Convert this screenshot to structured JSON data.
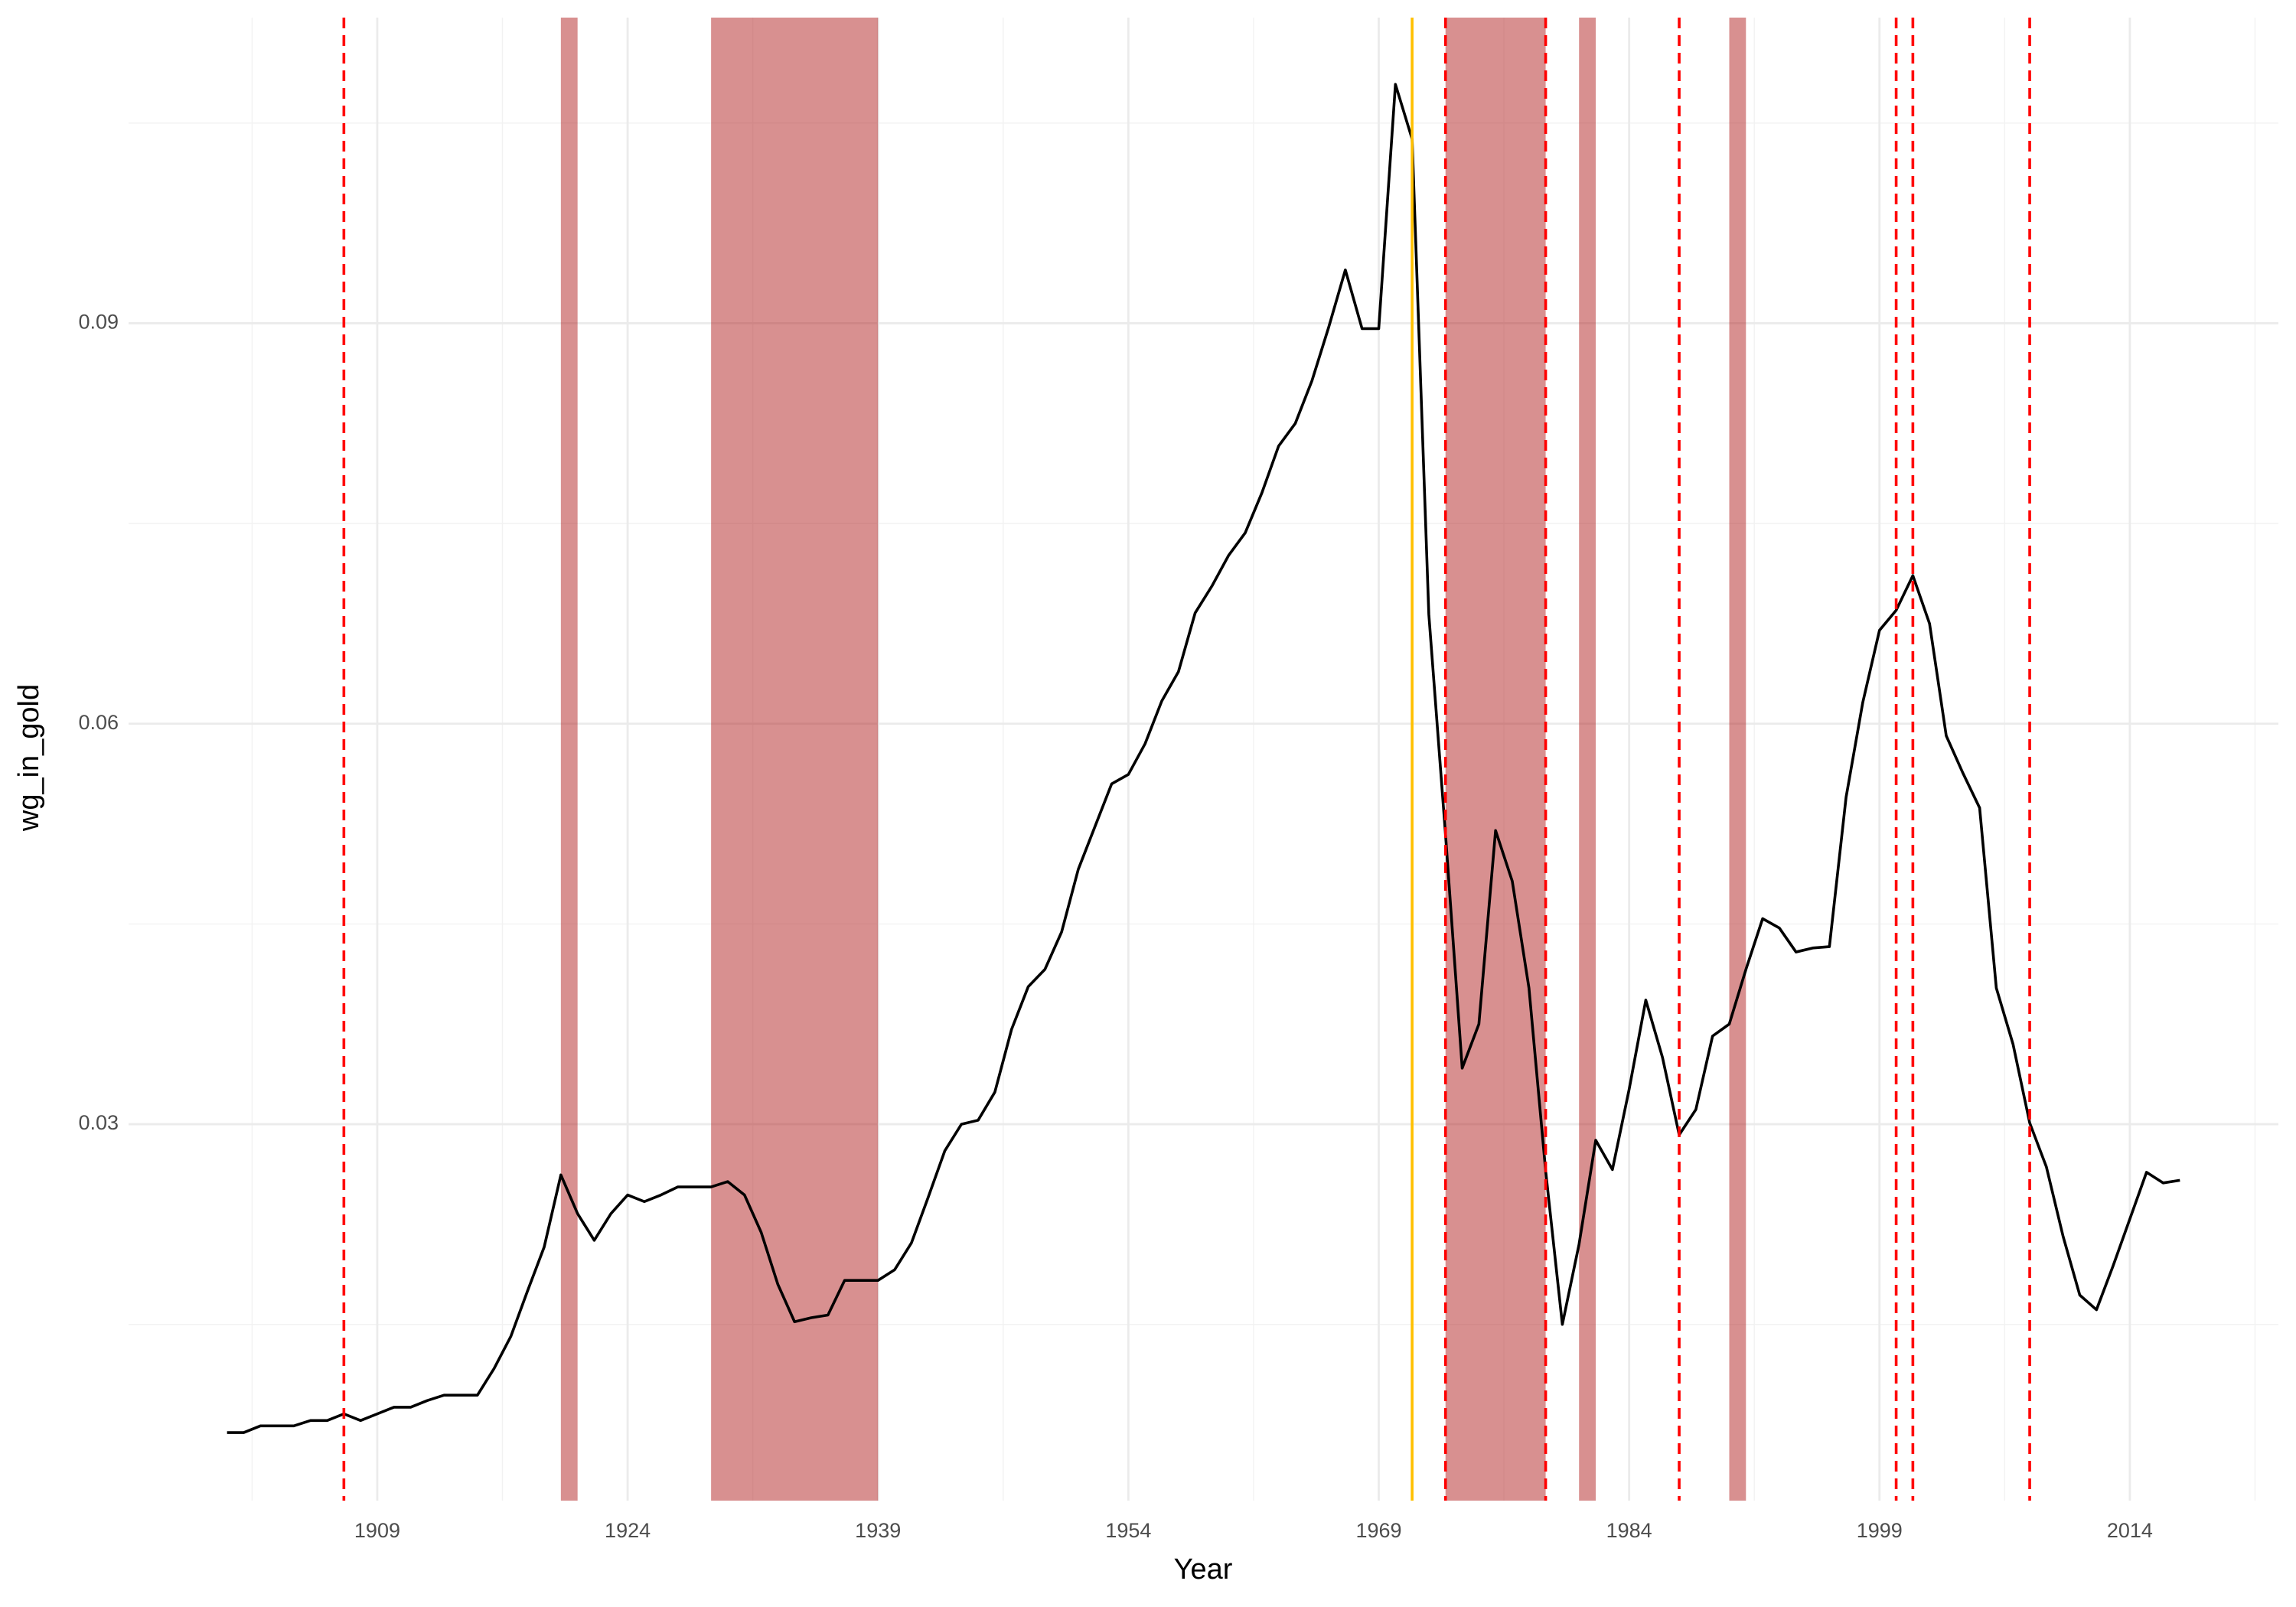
{
  "chart_data": {
    "type": "line",
    "x_label": "Year",
    "y_label": "wg_in_gold",
    "x": [
      1900,
      1901,
      1902,
      1903,
      1904,
      1905,
      1906,
      1907,
      1908,
      1909,
      1910,
      1911,
      1912,
      1913,
      1914,
      1915,
      1916,
      1917,
      1918,
      1919,
      1920,
      1921,
      1922,
      1923,
      1924,
      1925,
      1926,
      1927,
      1928,
      1929,
      1930,
      1931,
      1932,
      1933,
      1934,
      1935,
      1936,
      1937,
      1938,
      1939,
      1940,
      1941,
      1942,
      1943,
      1944,
      1945,
      1946,
      1947,
      1948,
      1949,
      1950,
      1951,
      1952,
      1953,
      1954,
      1955,
      1956,
      1957,
      1958,
      1959,
      1960,
      1961,
      1962,
      1963,
      1964,
      1965,
      1966,
      1967,
      1968,
      1969,
      1970,
      1971,
      1972,
      1973,
      1974,
      1975,
      1976,
      1977,
      1978,
      1979,
      1980,
      1981,
      1982,
      1983,
      1984,
      1985,
      1986,
      1987,
      1988,
      1989,
      1990,
      1991,
      1992,
      1993,
      1994,
      1995,
      1996,
      1997,
      1998,
      1999,
      2000,
      2001,
      2002,
      2003,
      2004,
      2005,
      2006,
      2007,
      2008,
      2009,
      2010,
      2011,
      2012,
      2013,
      2014,
      2015,
      2016,
      2017
    ],
    "values": [
      0.0069,
      0.0069,
      0.0074,
      0.0074,
      0.0074,
      0.0078,
      0.0078,
      0.0083,
      0.0078,
      0.0083,
      0.0088,
      0.0088,
      0.0093,
      0.0097,
      0.0097,
      0.0097,
      0.0117,
      0.0141,
      0.0175,
      0.0208,
      0.0262,
      0.0233,
      0.0213,
      0.0233,
      0.0247,
      0.0242,
      0.0247,
      0.0253,
      0.0253,
      0.0253,
      0.0257,
      0.0247,
      0.0219,
      0.018,
      0.0152,
      0.0155,
      0.0157,
      0.0183,
      0.0183,
      0.0183,
      0.0191,
      0.0211,
      0.0245,
      0.028,
      0.03,
      0.0303,
      0.0324,
      0.0371,
      0.0403,
      0.0416,
      0.0444,
      0.0491,
      0.0523,
      0.0555,
      0.0562,
      0.0585,
      0.0617,
      0.0639,
      0.0683,
      0.0703,
      0.0726,
      0.0743,
      0.0773,
      0.0808,
      0.0825,
      0.0857,
      0.0897,
      0.094,
      0.0896,
      0.0896,
      0.1079,
      0.1038,
      0.0682,
      0.0517,
      0.0342,
      0.0375,
      0.052,
      0.0482,
      0.0402,
      0.0265,
      0.015,
      0.021,
      0.0288,
      0.0266,
      0.0326,
      0.0393,
      0.035,
      0.0292,
      0.0311,
      0.0366,
      0.0375,
      0.0416,
      0.0454,
      0.0447,
      0.0429,
      0.0432,
      0.0433,
      0.0545,
      0.0616,
      0.067,
      0.0685,
      0.0711,
      0.0675,
      0.0591,
      0.0563,
      0.0537,
      0.0402,
      0.036,
      0.0301,
      0.0268,
      0.0216,
      0.0172,
      0.0161,
      0.0194,
      0.0229,
      0.0264,
      0.0256,
      0.0258
    ],
    "color": "#000000",
    "shaded_periods": [
      [
        1920,
        1921
      ],
      [
        1929,
        1939
      ],
      [
        1973,
        1979
      ],
      [
        1981,
        1982
      ],
      [
        1990,
        1991
      ]
    ],
    "shade_color": "#b22222",
    "dashed_lines": [
      1907,
      1973,
      1979,
      1987,
      2000,
      2001,
      2008
    ],
    "dashed_color": "#ff0000",
    "solid_lines": [
      1971
    ],
    "solid_color": "#ffc000",
    "xlim": [
      1894.1,
      2022.9
    ],
    "ylim": [
      0.0018,
      0.1129
    ],
    "xticks": [
      1909,
      1924,
      1939,
      1954,
      1969,
      1984,
      1999,
      2014
    ],
    "yticks": [
      0.03,
      0.06,
      0.09
    ],
    "grid": true
  }
}
